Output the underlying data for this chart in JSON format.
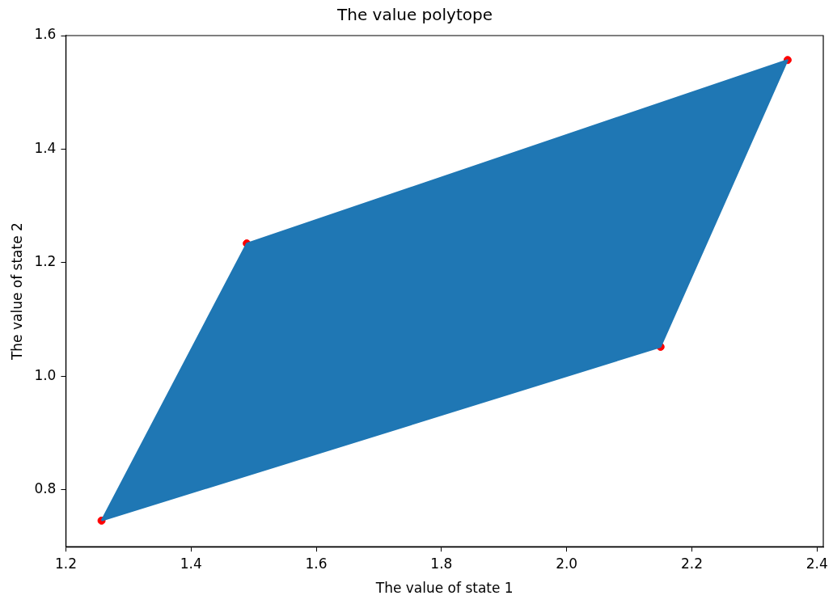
{
  "chart_data": {
    "type": "scatter",
    "title": "The value polytope",
    "xlabel": "The value of state 1",
    "ylabel": "The value of state 2",
    "series": [
      {
        "type": "area",
        "color": "#1f77b4",
        "x": [
          1.257,
          1.489,
          2.353,
          2.15,
          1.257
        ],
        "values": [
          0.746,
          1.234,
          1.557,
          1.052,
          0.746
        ]
      },
      {
        "type": "scatter",
        "color": "#ff0000",
        "marker": "circle",
        "x": [
          1.257,
          1.489,
          2.15,
          2.353
        ],
        "values": [
          0.746,
          1.234,
          1.052,
          1.557
        ]
      }
    ],
    "xlim": [
      1.2,
      2.41
    ],
    "ylim": [
      0.7,
      1.6
    ],
    "xticks": [
      1.2,
      1.4,
      1.6,
      1.8,
      {
        "value": 2,
        "label": "2.0"
      },
      2.2,
      2.4
    ],
    "yticks": [
      0.8,
      {
        "value": 1,
        "label": "1.0"
      },
      1.2,
      1.4,
      1.6
    ],
    "grid": false,
    "legend": false
  }
}
